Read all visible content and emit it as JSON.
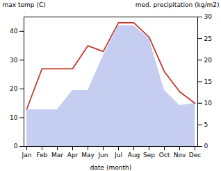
{
  "chart_data": {
    "type": "line",
    "categories": [
      "Jan",
      "Feb",
      "Mar",
      "Apr",
      "May",
      "Jun",
      "Jul",
      "Aug",
      "Sep",
      "Oct",
      "Nov",
      "Dec"
    ],
    "series": [
      {
        "type": "area",
        "axis": "y2",
        "color": "#c5cef0",
        "values": [
          8.5,
          8.5,
          8.5,
          13,
          13,
          21,
          28,
          28,
          25,
          13,
          9.5,
          10
        ]
      },
      {
        "type": "line",
        "color": "#c0392b",
        "values": [
          13,
          27,
          27,
          27,
          35,
          33,
          43,
          43,
          38,
          26,
          19,
          15
        ]
      }
    ],
    "xlabel": "date (month)",
    "ylabel": "max temp (C)",
    "y2label": "med. precipitation (kg/m2)",
    "ylim": [
      0,
      45
    ],
    "yticks": [
      0,
      10,
      20,
      30,
      40
    ],
    "y2lim": [
      0,
      30
    ],
    "y2ticks": [
      0,
      5,
      10,
      15,
      20,
      25,
      30
    ],
    "grid": false
  }
}
